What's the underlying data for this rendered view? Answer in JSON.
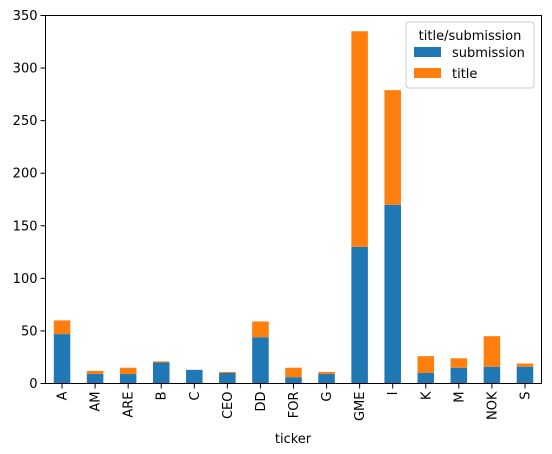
{
  "chart_data": {
    "type": "bar",
    "stacked": true,
    "xlabel": "ticker",
    "ylabel": "",
    "ylim": [
      0,
      350
    ],
    "yticks": [
      0,
      50,
      100,
      150,
      200,
      250,
      300,
      350
    ],
    "categories": [
      "A",
      "AM",
      "ARE",
      "B",
      "C",
      "CEO",
      "DD",
      "FOR",
      "G",
      "GME",
      "I",
      "K",
      "M",
      "NOK",
      "S"
    ],
    "series": [
      {
        "name": "submission",
        "color": "#1f77b4",
        "values": [
          47,
          9,
          9,
          20,
          13,
          10,
          44,
          6,
          9,
          130,
          170,
          10,
          15,
          16,
          16
        ]
      },
      {
        "name": "title",
        "color": "#ff7f0e",
        "values": [
          13,
          3,
          6,
          1,
          0,
          1,
          15,
          9,
          2,
          205,
          109,
          16,
          9,
          29,
          3
        ]
      }
    ],
    "legend": {
      "title": "title/submission",
      "placement": "top-right"
    },
    "grid": false
  }
}
